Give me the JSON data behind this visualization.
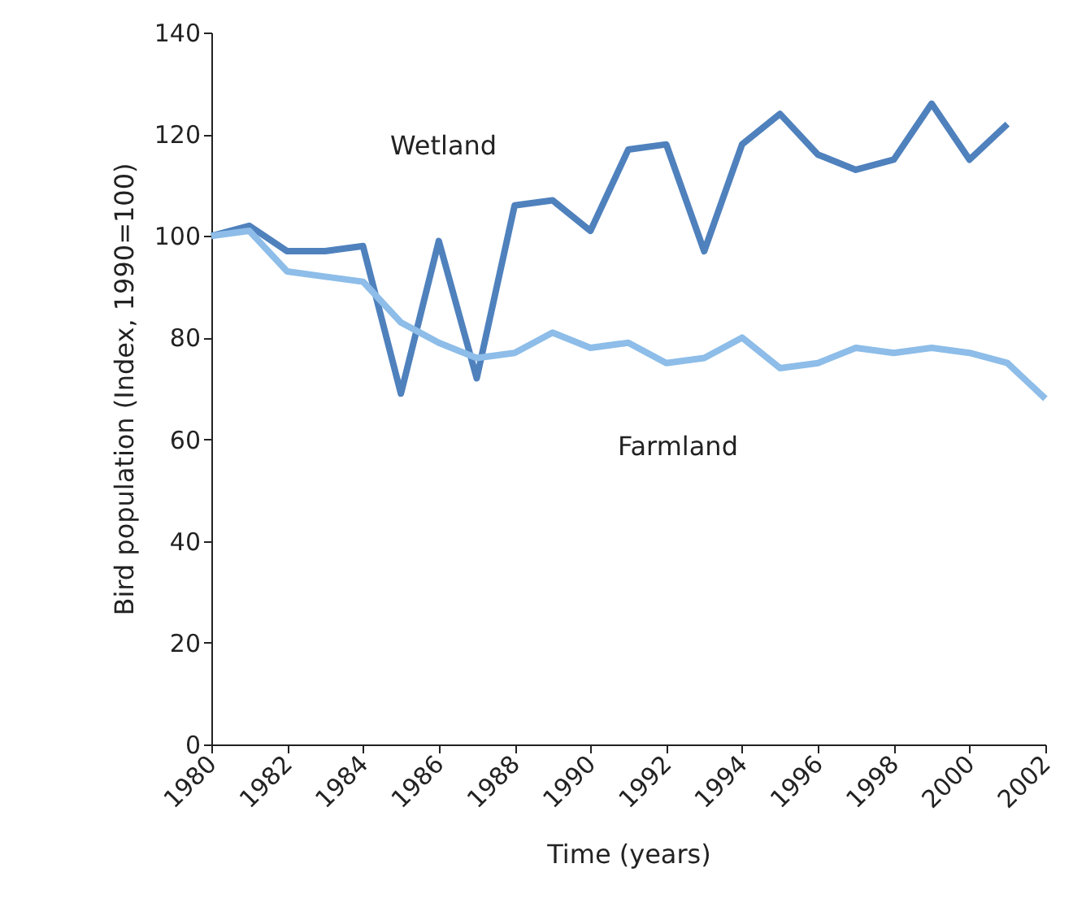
{
  "chart_data": {
    "type": "line",
    "xlabel": "Time (years)",
    "ylabel": "Bird population (Index, 1990=100)",
    "x": [
      1980,
      1981,
      1982,
      1983,
      1984,
      1985,
      1986,
      1987,
      1988,
      1989,
      1990,
      1991,
      1992,
      1993,
      1994,
      1995,
      1996,
      1997,
      1998,
      1999,
      2000,
      2001,
      2002
    ],
    "series": [
      {
        "name": "Wetland",
        "color": "#4f81bd",
        "values": [
          100,
          102,
          97,
          97,
          98,
          69,
          99,
          72,
          106,
          107,
          101,
          117,
          118,
          97,
          118,
          124,
          116,
          113,
          115,
          126,
          115,
          122,
          null
        ]
      },
      {
        "name": "Farmland",
        "color": "#8dbde8",
        "values": [
          100,
          101,
          93,
          92,
          91,
          83,
          79,
          76,
          77,
          81,
          78,
          79,
          75,
          76,
          80,
          74,
          75,
          78,
          77,
          78,
          77,
          75,
          68
        ]
      }
    ],
    "xlim": [
      1980,
      2002
    ],
    "xticks": [
      1980,
      1982,
      1984,
      1986,
      1988,
      1990,
      1992,
      1994,
      1996,
      1998,
      2000,
      2002
    ],
    "ylim": [
      0,
      140
    ],
    "yticks": [
      0,
      20,
      40,
      60,
      80,
      100,
      120,
      140
    ],
    "grid": false,
    "legend": false,
    "marker": "none",
    "line_style": "solid"
  }
}
